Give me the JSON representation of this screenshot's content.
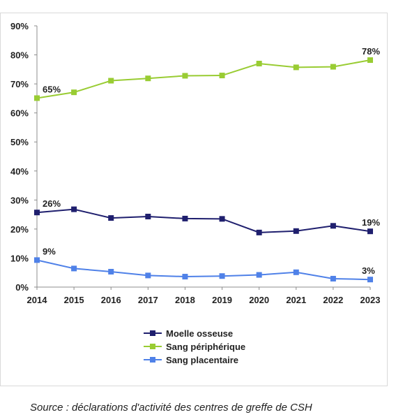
{
  "chart_data": {
    "type": "line",
    "x": [
      "2014",
      "2015",
      "2016",
      "2017",
      "2018",
      "2019",
      "2020",
      "2021",
      "2022",
      "2023"
    ],
    "ylim": [
      0,
      90
    ],
    "y_ticks": [
      "0%",
      "10%",
      "20%",
      "30%",
      "40%",
      "50%",
      "60%",
      "70%",
      "80%",
      "90%"
    ],
    "grid": false,
    "legend_position": "bottom",
    "series": [
      {
        "name": "Moelle osseuse",
        "color": "#1f1f6e",
        "values": [
          25.7,
          26.8,
          23.8,
          24.3,
          23.6,
          23.5,
          18.8,
          19.3,
          21.1,
          19.2
        ],
        "labels": [
          {
            "index": 0,
            "text": "26%"
          },
          {
            "index": 9,
            "text": "19%"
          }
        ]
      },
      {
        "name": "Sang périphérique",
        "color": "#99cc33",
        "values": [
          65.1,
          67.1,
          71.1,
          71.9,
          72.8,
          72.9,
          77.0,
          75.7,
          75.9,
          78.2
        ],
        "labels": [
          {
            "index": 0,
            "text": "65%"
          },
          {
            "index": 9,
            "text": "78%"
          }
        ]
      },
      {
        "name": "Sang placentaire",
        "color": "#4f81e8",
        "values": [
          9.3,
          6.4,
          5.3,
          4.0,
          3.6,
          3.8,
          4.2,
          5.1,
          2.9,
          2.6
        ],
        "labels": [
          {
            "index": 0,
            "text": "9%"
          },
          {
            "index": 9,
            "text": "3%"
          }
        ]
      }
    ]
  },
  "source": "Source : déclarations d'activité des centres de greffe de CSH"
}
